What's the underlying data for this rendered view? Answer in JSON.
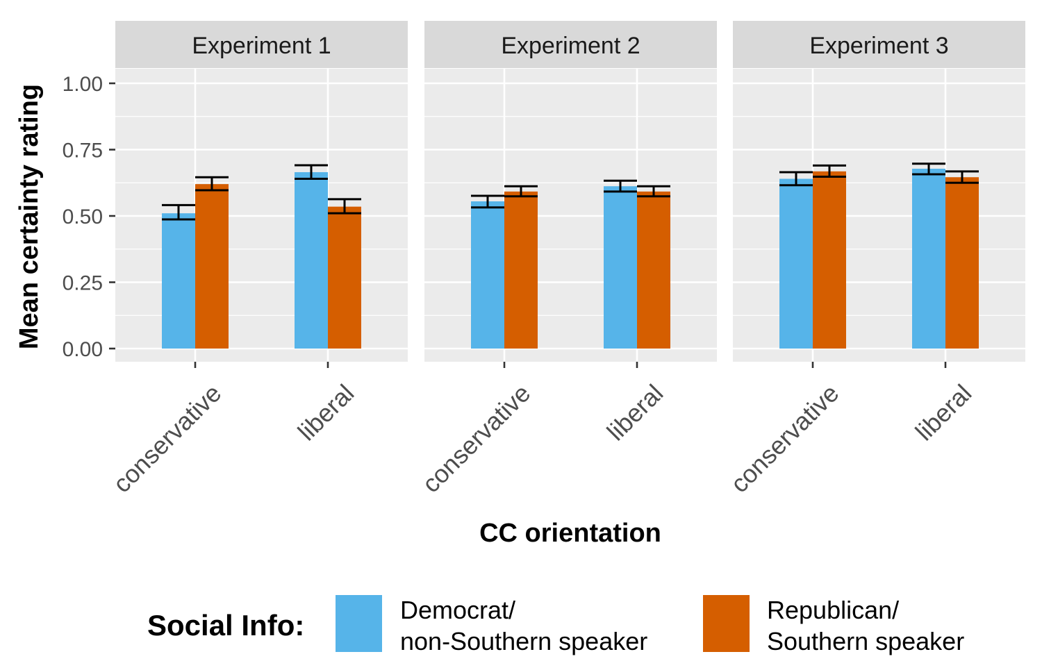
{
  "chart_data": {
    "type": "bar",
    "facet_label_prefix": "",
    "panels": [
      {
        "title": "Experiment 1",
        "categories": [
          "conservative",
          "liberal"
        ],
        "series": [
          {
            "name": "Democrat/\nnon-Southern speaker",
            "values": [
              0.51,
              0.665
            ],
            "ci_low": [
              0.487,
              0.64
            ],
            "ci_high": [
              0.541,
              0.691
            ]
          },
          {
            "name": "Republican/\nSouthern speaker",
            "values": [
              0.62,
              0.535
            ],
            "ci_low": [
              0.597,
              0.51
            ],
            "ci_high": [
              0.646,
              0.563
            ]
          }
        ]
      },
      {
        "title": "Experiment 2",
        "categories": [
          "conservative",
          "liberal"
        ],
        "series": [
          {
            "name": "Democrat/\nnon-Southern speaker",
            "values": [
              0.555,
              0.612
            ],
            "ci_low": [
              0.532,
              0.592
            ],
            "ci_high": [
              0.576,
              0.633
            ]
          },
          {
            "name": "Republican/\nSouthern speaker",
            "values": [
              0.592,
              0.592
            ],
            "ci_low": [
              0.574,
              0.574
            ],
            "ci_high": [
              0.612,
              0.612
            ]
          }
        ]
      },
      {
        "title": "Experiment 3",
        "categories": [
          "conservative",
          "liberal"
        ],
        "series": [
          {
            "name": "Democrat/\nnon-Southern speaker",
            "values": [
              0.64,
              0.678
            ],
            "ci_low": [
              0.616,
              0.657
            ],
            "ci_high": [
              0.665,
              0.697
            ]
          },
          {
            "name": "Republican/\nSouthern speaker",
            "values": [
              0.668,
              0.646
            ],
            "ci_low": [
              0.648,
              0.625
            ],
            "ci_high": [
              0.69,
              0.668
            ]
          }
        ]
      }
    ],
    "ylabel": "Mean certainty rating",
    "xlabel": "CC orientation",
    "ylim": [
      -0.04,
      1.1
    ],
    "yticks": [
      "0.00",
      "0.25",
      "0.50",
      "0.75",
      "1.00"
    ],
    "ytick_values": [
      0,
      0.25,
      0.5,
      0.75,
      1.0
    ],
    "grid": true,
    "legend": {
      "title": "Social Info:",
      "placement": "bottom",
      "items": [
        {
          "line1": "Democrat/",
          "line2": "non-Southern speaker",
          "color": "#56B4E9"
        },
        {
          "line1": "Republican/",
          "line2": "Southern speaker",
          "color": "#D55E00"
        }
      ]
    },
    "colors": {
      "series": [
        "#56B4E9",
        "#D55E00"
      ],
      "panel_bg": "#EBEBEB",
      "strip_bg": "#D9D9D9",
      "grid": "#FFFFFF"
    }
  }
}
